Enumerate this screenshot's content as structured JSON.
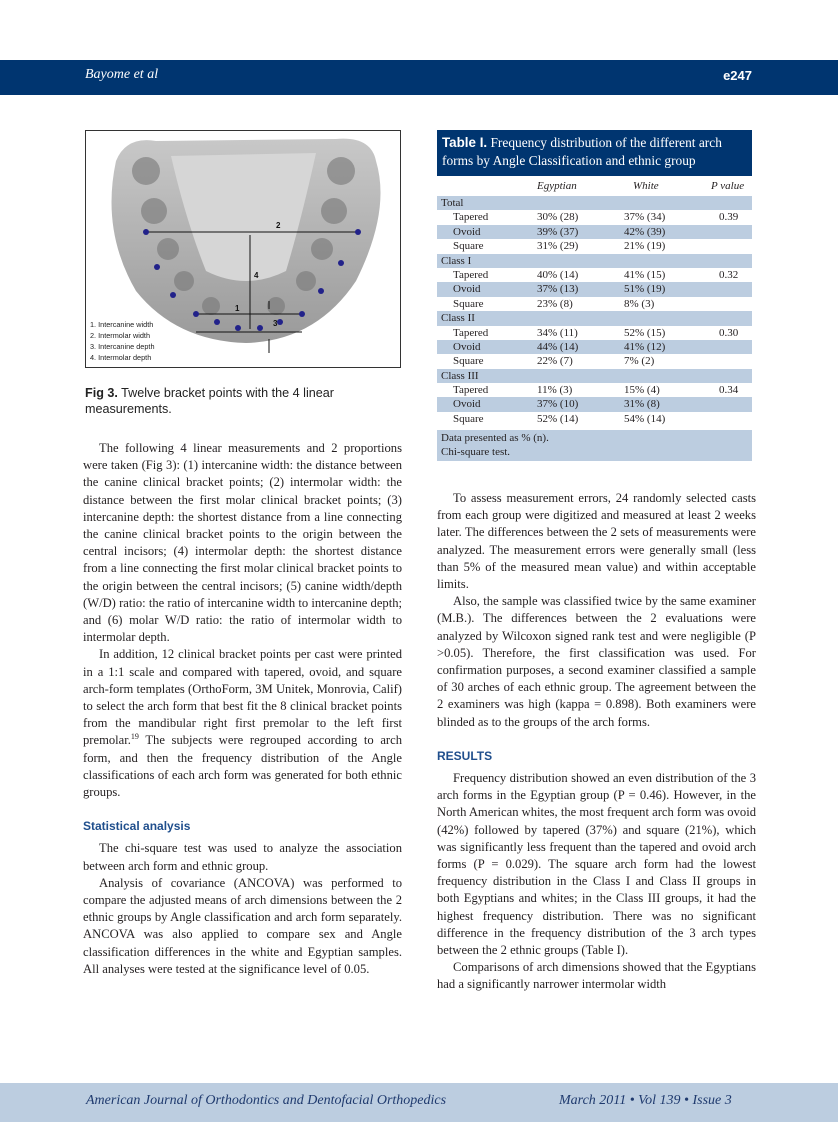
{
  "header": {
    "authors": "Bayome et al",
    "page": "e247"
  },
  "footer": {
    "journal": "American Journal of Orthodontics and Dentofacial Orthopedics",
    "issue": "March 2011 • Vol 139 • Issue 3"
  },
  "figure": {
    "legend": [
      "1.  Intercanine width",
      "2.  Intermolar width",
      "3.  Intercanine depth",
      "4.  Intermolar depth"
    ],
    "markers": [
      "1",
      "2",
      "3",
      "4"
    ],
    "caption_label": "Fig 3.",
    "caption_text": " Twelve bracket points with the 4 linear measurements."
  },
  "table": {
    "title_label": "Table I.",
    "title_text": " Frequency distribution of the different arch forms by Angle Classification and ethnic group",
    "columns": [
      "",
      "Egyptian",
      "White",
      "P value"
    ],
    "groups": [
      {
        "name": "Total",
        "rows": [
          [
            "Tapered",
            "30% (28)",
            "37% (34)",
            "0.39"
          ],
          [
            "Ovoid",
            "39% (37)",
            "42% (39)",
            ""
          ],
          [
            "Square",
            "31% (29)",
            "21% (19)",
            ""
          ]
        ]
      },
      {
        "name": "Class I",
        "rows": [
          [
            "Tapered",
            "40% (14)",
            "41% (15)",
            "0.32"
          ],
          [
            "Ovoid",
            "37% (13)",
            "51% (19)",
            ""
          ],
          [
            "Square",
            "23% (8)",
            "8% (3)",
            ""
          ]
        ]
      },
      {
        "name": "Class II",
        "rows": [
          [
            "Tapered",
            "34% (11)",
            "52% (15)",
            "0.30"
          ],
          [
            "Ovoid",
            "44% (14)",
            "41% (12)",
            ""
          ],
          [
            "Square",
            "22% (7)",
            "7% (2)",
            ""
          ]
        ]
      },
      {
        "name": "Class III",
        "rows": [
          [
            "Tapered",
            "11% (3)",
            "15% (4)",
            "0.34"
          ],
          [
            "Ovoid",
            "37% (10)",
            "31% (8)",
            ""
          ],
          [
            "Square",
            "52% (14)",
            "54% (14)",
            ""
          ]
        ]
      }
    ],
    "notes": [
      "Data presented as % (n).",
      "Chi-square test."
    ]
  },
  "left": {
    "p1": "The following 4 linear measurements and 2 proportions were taken (Fig 3): (1) intercanine width: the distance between the canine clinical bracket points; (2) intermolar width: the distance between the first molar clinical bracket points; (3) intercanine depth: the shortest distance from a line connecting the canine clinical bracket points to the origin between the central incisors; (4) intermolar depth: the shortest distance from a line connecting the first molar clinical bracket points to the origin between the central incisors; (5) canine width/depth (W/D) ratio: the ratio of intercanine width to intercanine depth; and (6) molar W/D ratio: the ratio of intermolar width to intermolar depth.",
    "p2a": "In addition, 12 clinical bracket points per cast were printed in a 1:1 scale and compared with tapered, ovoid, and square arch-form templates (OrthoForm, 3M Unitek, Monrovia, Calif) to select the arch form that best fit the 8 clinical bracket points from the mandibular right first premolar to the left first premolar.",
    "p2ref": "19",
    "p2b": " The subjects were regrouped according to arch form, and then the frequency distribution of the Angle classifications of each arch form was generated for both ethnic groups.",
    "h_stat": "Statistical analysis",
    "p3": "The chi-square test was used to analyze the association between arch form and ethnic group.",
    "p4": "Analysis of covariance (ANCOVA) was performed to compare the adjusted means of arch dimensions between the 2 ethnic groups by Angle classification and arch form separately. ANCOVA was also applied to compare sex and Angle classification differences in the white and Egyptian samples. All analyses were tested at the significance level of 0.05."
  },
  "right": {
    "p1": "To assess measurement errors, 24 randomly selected casts from each group were digitized and measured at least 2 weeks later. The differences between the 2 sets of measurements were analyzed. The measurement errors were generally small (less than 5% of the measured mean value) and within acceptable limits.",
    "p2": "Also, the sample was classified twice by the same examiner (M.B.). The differences between the 2 evaluations were analyzed by Wilcoxon signed rank test and were negligible (P >0.05). Therefore, the first classification was used. For confirmation purposes, a second examiner classified a sample of 30 arches of each ethnic group. The agreement between the 2 examiners was high (kappa = 0.898). Both examiners were blinded as to the groups of the arch forms.",
    "h_results": "RESULTS",
    "p3": "Frequency distribution showed an even distribution of the 3 arch forms in the Egyptian group (P = 0.46). However, in the North American whites, the most frequent arch form was ovoid (42%) followed by tapered (37%) and square (21%), which was significantly less frequent than the tapered and ovoid arch forms (P = 0.029). The square arch form had the lowest frequency distribution in the Class I and Class II groups in both Egyptians and whites; in the Class III groups, it had the highest frequency distribution. There was no significant difference in the frequency distribution of the 3 arch types between the 2 ethnic groups (Table I).",
    "p4": "Comparisons of arch dimensions showed that the Egyptians had a significantly narrower intermolar width"
  }
}
